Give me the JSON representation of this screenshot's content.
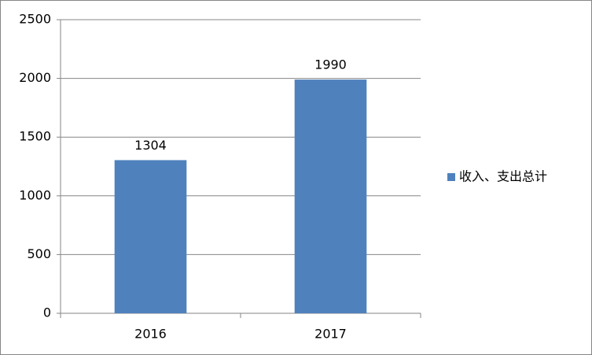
{
  "chart_data": {
    "type": "bar",
    "categories": [
      "2016",
      "2017"
    ],
    "series": [
      {
        "name": "收入、支出总计",
        "color": "#4f81bd",
        "values": [
          1304,
          1990
        ]
      }
    ],
    "ylim": [
      0,
      2500
    ],
    "yticks": [
      0,
      500,
      1000,
      1500,
      2000,
      2500
    ],
    "grid": true,
    "legend": "right",
    "data_labels": true
  }
}
